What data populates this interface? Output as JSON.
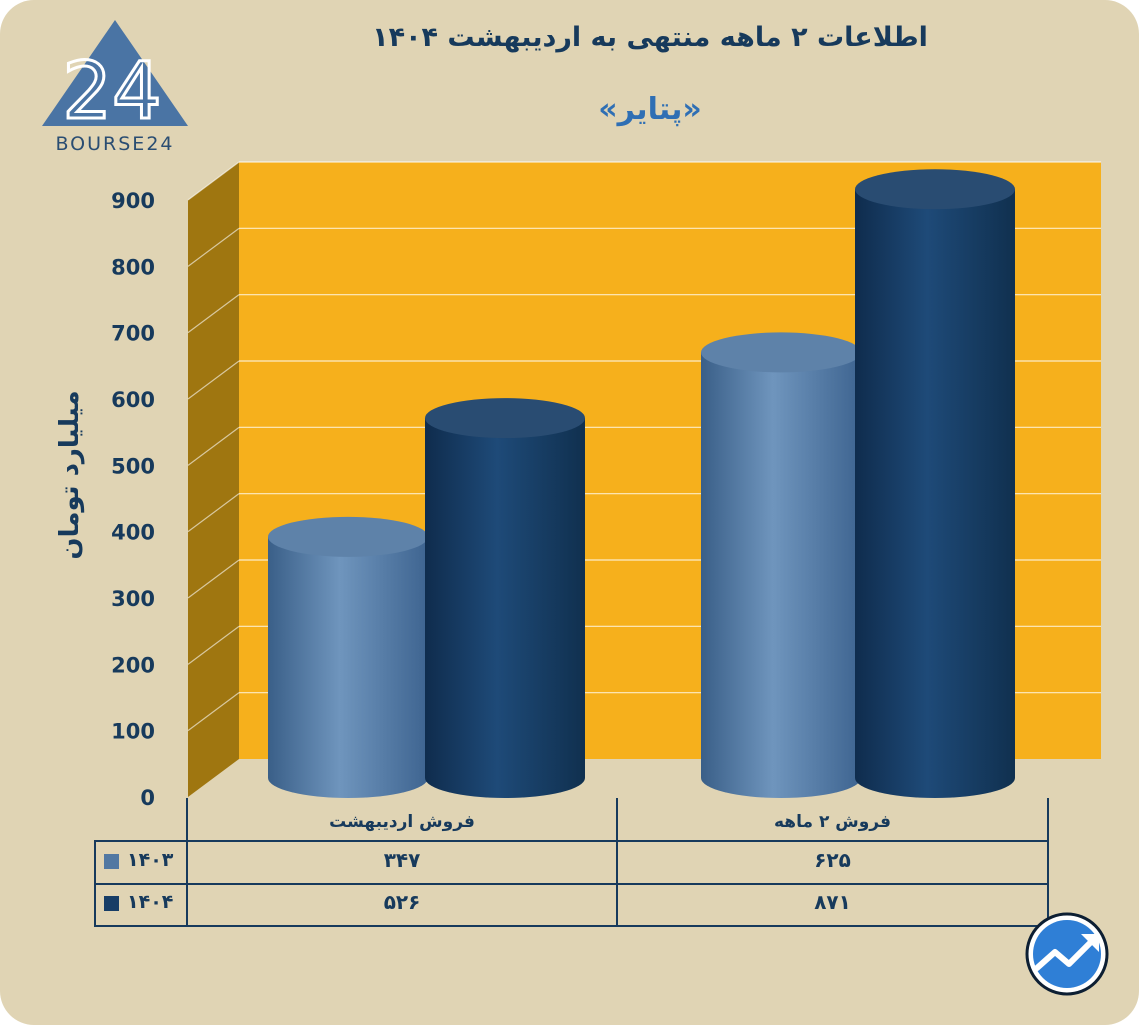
{
  "header": {
    "title": "اطلاعات ۲ ماهه منتهی به اردیبهشت ۱۴۰۴",
    "subtitle": "«پتایر»"
  },
  "logo": {
    "text": "BOURSE24",
    "mark": "24"
  },
  "colors": {
    "background": "#e0d4b4",
    "plot_back": "#f6b01c",
    "plot_side": "#9f7610",
    "series_1403": "#5178a2",
    "series_1404": "#173d66",
    "text": "#173a5c"
  },
  "chart_data": {
    "type": "bar",
    "categories": [
      "فروش اردیبهشت",
      "فروش ۲ ماهه"
    ],
    "series": [
      {
        "name": "۱۴۰۳",
        "values": [
          347,
          625
        ],
        "values_label": [
          "۳۴۷",
          "۶۲۵"
        ]
      },
      {
        "name": "۱۴۰۴",
        "values": [
          526,
          871
        ],
        "values_label": [
          "۵۲۶",
          "۸۷۱"
        ]
      }
    ],
    "ylabel": "میلیارد تومان",
    "ylim": [
      0,
      900
    ],
    "yticks": [
      "0",
      "100",
      "200",
      "300",
      "400",
      "500",
      "600",
      "700",
      "800",
      "900"
    ],
    "grid": true,
    "legend": "in data table (left column)"
  },
  "badge": {
    "icon": "trend-up-arrow-icon"
  }
}
